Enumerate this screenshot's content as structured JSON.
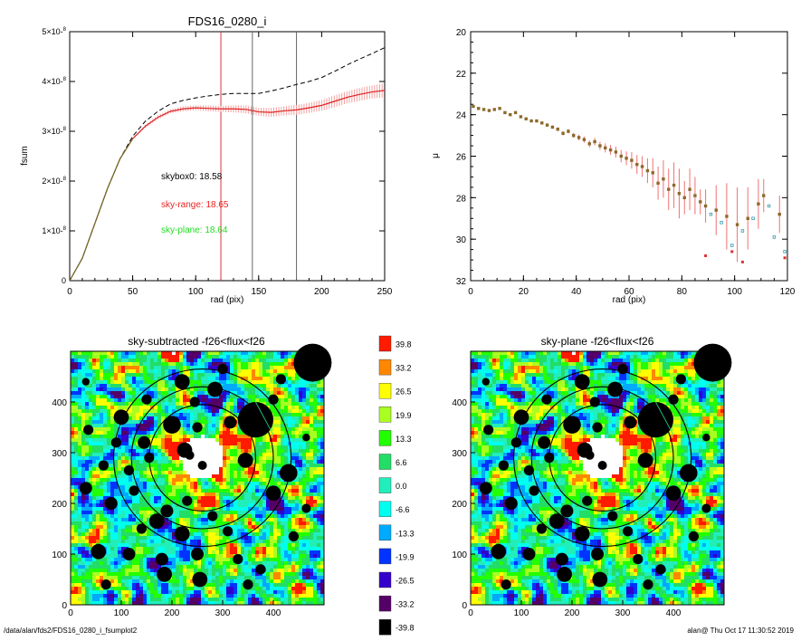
{
  "footer": {
    "left": "/data/alan/fds2/FDS16_0280_i_fsumplot2",
    "right": "alan@  Thu Oct 17 11:30:52 2019"
  },
  "chart_data": [
    {
      "type": "line",
      "title": "FDS16_0280_i",
      "xlabel": "rad (pix)",
      "ylabel": "fsum",
      "xlim": [
        0,
        250
      ],
      "ylim": [
        0,
        5e-08
      ],
      "xticks": [
        "0",
        "50",
        "100",
        "150",
        "200",
        "250"
      ],
      "yticks": [
        "0",
        "1×10-8",
        "2×10-8",
        "3×10-8",
        "4×10-8",
        "5×10-8"
      ],
      "vlines": [
        {
          "x": 120,
          "color": "#dd3333"
        },
        {
          "x": 145,
          "color": "#666666"
        },
        {
          "x": 180,
          "color": "#666666"
        }
      ],
      "annotations": [
        {
          "text": "skybox0: 18.58",
          "color": "#000000"
        },
        {
          "text": "sky-range: 18.65",
          "color": "#ee2222"
        },
        {
          "text": "sky-plane: 18.64",
          "color": "#22dd22"
        }
      ],
      "series": [
        {
          "style": "dashed",
          "color": "#000000",
          "x": [
            0,
            10,
            20,
            30,
            40,
            50,
            60,
            70,
            80,
            90,
            100,
            110,
            120,
            130,
            140,
            150,
            160,
            170,
            180,
            190,
            200,
            210,
            220,
            230,
            240,
            250
          ],
          "y": [
            0,
            4.5e-09,
            1.15e-08,
            1.85e-08,
            2.45e-08,
            2.9e-08,
            3.2e-08,
            3.4e-08,
            3.55e-08,
            3.62e-08,
            3.67e-08,
            3.71e-08,
            3.74e-08,
            3.76e-08,
            3.76e-08,
            3.76e-08,
            3.81e-08,
            3.87e-08,
            3.94e-08,
            4e-08,
            4.08e-08,
            4.2e-08,
            4.33e-08,
            4.45e-08,
            4.56e-08,
            4.68e-08
          ]
        },
        {
          "style": "solid-errorbars",
          "color": "#dd2222",
          "x": [
            0,
            10,
            20,
            30,
            40,
            50,
            60,
            70,
            80,
            90,
            100,
            110,
            120,
            130,
            140,
            150,
            160,
            170,
            180,
            190,
            200,
            210,
            220,
            230,
            240,
            250
          ],
          "y": [
            0,
            4.5e-09,
            1.15e-08,
            1.85e-08,
            2.45e-08,
            2.85e-08,
            3.1e-08,
            3.28e-08,
            3.4e-08,
            3.45e-08,
            3.47e-08,
            3.46e-08,
            3.45e-08,
            3.45e-08,
            3.44e-08,
            3.39e-08,
            3.38e-08,
            3.41e-08,
            3.43e-08,
            3.47e-08,
            3.52e-08,
            3.6e-08,
            3.68e-08,
            3.74e-08,
            3.79e-08,
            3.82e-08
          ],
          "err": [
            0,
            0,
            0,
            0,
            0,
            2e-10,
            3e-10,
            4e-10,
            4e-10,
            5e-10,
            5e-10,
            6e-10,
            6e-10,
            7e-10,
            8e-10,
            8e-10,
            9e-10,
            9e-10,
            1e-09,
            1e-09,
            1.1e-09,
            1.2e-09,
            1.2e-09,
            1.3e-09,
            1.3e-09,
            1.4e-09
          ]
        }
      ]
    },
    {
      "type": "scatter",
      "xlabel": "rad (pix)",
      "ylabel": "μ",
      "xlim": [
        0,
        120
      ],
      "ylim": [
        32,
        20
      ],
      "xticks": [
        "0",
        "20",
        "40",
        "60",
        "80",
        "100",
        "120"
      ],
      "yticks": [
        "20",
        "22",
        "24",
        "26",
        "28",
        "30",
        "32"
      ],
      "series": [
        {
          "color": "#8b6a2a",
          "x": [
            1,
            3,
            5,
            7,
            9,
            11,
            13,
            15,
            17,
            19,
            21,
            23,
            25,
            27,
            29,
            31,
            33,
            35,
            37,
            39,
            41,
            43,
            45,
            47,
            49,
            51,
            53,
            55,
            57,
            59,
            61,
            63,
            65,
            67,
            69,
            71,
            73,
            75,
            77,
            79,
            81,
            83,
            85,
            87,
            89,
            93,
            97,
            101,
            105,
            109,
            111,
            117
          ],
          "y": [
            23.6,
            23.7,
            23.75,
            23.8,
            23.75,
            23.7,
            23.9,
            24.0,
            23.9,
            24.1,
            24.2,
            24.3,
            24.3,
            24.4,
            24.5,
            24.6,
            24.7,
            24.9,
            24.8,
            25.0,
            25.1,
            25.2,
            25.4,
            25.3,
            25.5,
            25.6,
            25.7,
            25.8,
            26.0,
            26.1,
            26.2,
            26.4,
            26.5,
            26.7,
            26.8,
            27.3,
            27.1,
            27.6,
            27.4,
            27.8,
            28.0,
            27.6,
            27.9,
            28.2,
            28.4,
            28.6,
            28.9,
            29.3,
            29.0,
            28.3,
            27.9,
            28.8
          ],
          "err": [
            0.05,
            0.05,
            0.05,
            0.05,
            0.05,
            0.05,
            0.05,
            0.05,
            0.05,
            0.05,
            0.06,
            0.06,
            0.07,
            0.07,
            0.08,
            0.08,
            0.09,
            0.1,
            0.1,
            0.12,
            0.13,
            0.15,
            0.17,
            0.18,
            0.2,
            0.22,
            0.24,
            0.27,
            0.3,
            0.33,
            0.4,
            0.45,
            0.5,
            0.6,
            0.7,
            0.8,
            0.9,
            1.0,
            1.1,
            1.2,
            0.8,
            1.0,
            0.9,
            0.6,
            0.8,
            1.2,
            1.6,
            1.8,
            1.5,
            1.2,
            0.8,
            0.9
          ]
        },
        {
          "color": "#3399aa",
          "x": [
            91,
            95,
            99,
            103,
            107,
            113,
            115,
            119
          ],
          "y": [
            28.8,
            29.2,
            30.3,
            29.6,
            29.0,
            28.4,
            29.9,
            30.6
          ]
        },
        {
          "color": "#dd3333",
          "x": [
            89,
            99,
            103,
            119
          ],
          "y": [
            30.8,
            30.6,
            31.1,
            30.9
          ]
        }
      ]
    },
    {
      "type": "heatmap",
      "title": "sky-subtracted -f26<flux<f26",
      "xlim": [
        0,
        500
      ],
      "ylim": [
        0,
        500
      ],
      "xticks": [
        "0",
        "100",
        "200",
        "300",
        "400"
      ],
      "yticks": [
        "0",
        "100",
        "200",
        "300",
        "400"
      ]
    },
    {
      "type": "heatmap",
      "title": "sky-plane -f26<flux<f26",
      "xlim": [
        0,
        500
      ],
      "ylim": [
        0,
        500
      ],
      "xticks": [
        "0",
        "100",
        "200",
        "300",
        "400"
      ],
      "yticks": [
        "0",
        "100",
        "200",
        "300",
        "400"
      ]
    }
  ],
  "colorbar": {
    "labels": [
      "39.8",
      "33.2",
      "26.5",
      "19.9",
      "13.3",
      "6.6",
      "0.0",
      "-6.6",
      "-13.3",
      "-19.9",
      "-26.5",
      "-33.2",
      "-39.8"
    ],
    "colors": [
      "#ff1a00",
      "#ff8800",
      "#ffff00",
      "#aaff22",
      "#22ff00",
      "#22dd66",
      "#22eebb",
      "#00ffee",
      "#00aaff",
      "#0033ff",
      "#3300cc",
      "#550066",
      "#000000"
    ]
  }
}
